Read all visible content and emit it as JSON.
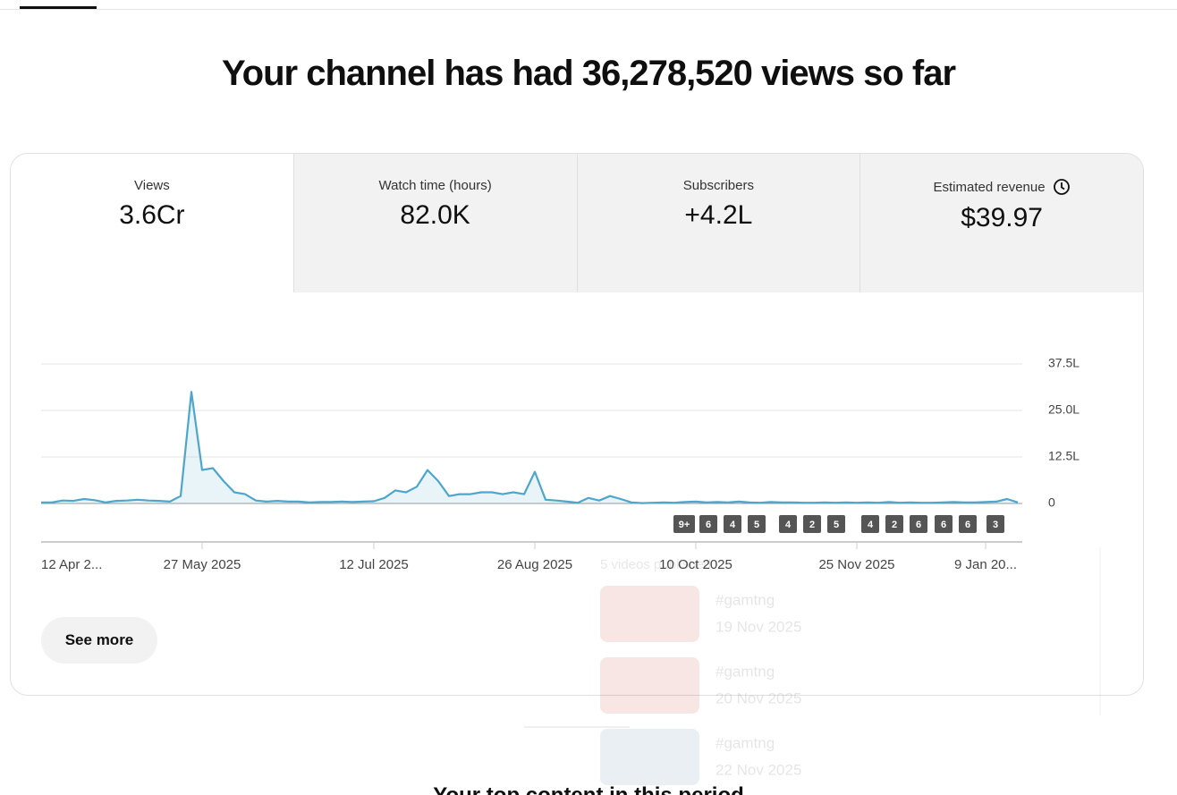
{
  "header": {
    "title": "Your channel has had 36,278,520 views so far"
  },
  "metrics": [
    {
      "label": "Views",
      "value": "3.6Cr"
    },
    {
      "label": "Watch time (hours)",
      "value": "82.0K"
    },
    {
      "label": "Subscribers",
      "value": "+4.2L"
    },
    {
      "label": "Estimated revenue",
      "value": "$39.97"
    }
  ],
  "chart_data": {
    "type": "line",
    "color": "#4ea6cc",
    "categories": [
      "12 Apr 2...",
      null,
      null,
      null,
      null,
      null,
      null,
      null,
      null,
      null,
      null,
      null,
      null,
      null,
      null,
      "27 May 2025",
      null,
      null,
      null,
      null,
      null,
      null,
      null,
      null,
      null,
      null,
      null,
      null,
      null,
      null,
      null,
      "12 Jul 2025",
      null,
      null,
      null,
      null,
      null,
      null,
      null,
      null,
      null,
      null,
      null,
      null,
      null,
      null,
      "26 Aug 2025",
      null,
      null,
      null,
      null,
      null,
      null,
      null,
      null,
      null,
      null,
      null,
      null,
      null,
      null,
      "10 Oct 2025",
      null,
      null,
      null,
      null,
      null,
      null,
      null,
      null,
      null,
      null,
      null,
      null,
      null,
      null,
      "25 Nov 2025",
      null,
      null,
      null,
      null,
      null,
      null,
      null,
      null,
      null,
      null,
      null,
      "9 Jan 20...",
      null,
      null,
      null
    ],
    "values": [
      0.3,
      0.3,
      0.8,
      0.7,
      1.2,
      0.9,
      0.3,
      0.7,
      0.8,
      1.0,
      0.8,
      0.7,
      0.5,
      2.0,
      30,
      9,
      9.5,
      6,
      3,
      2.5,
      0.8,
      0.5,
      0.7,
      0.5,
      0.5,
      0.3,
      0.4,
      0.4,
      0.5,
      0.4,
      0.5,
      0.6,
      1.5,
      3.5,
      3,
      4.5,
      9,
      6,
      2,
      2.5,
      2.5,
      3,
      3,
      2.5,
      3,
      2.5,
      8.5,
      1.0,
      0.8,
      0.5,
      0.2,
      1.5,
      0.8,
      2,
      1.2,
      0.3,
      0.1,
      0.2,
      0.3,
      0.2,
      0.4,
      0.5,
      0.3,
      0.4,
      0.3,
      0.5,
      0.3,
      0.2,
      0.4,
      0.3,
      0.3,
      0.2,
      0.2,
      0.3,
      0.2,
      0.3,
      0.2,
      0.3,
      0.2,
      0.4,
      0.2,
      0.3,
      0.2,
      0.2,
      0.3,
      0.4,
      0.3,
      0.3,
      0.4,
      0.5,
      1.2,
      0.3
    ],
    "ylim": [
      0,
      37.5
    ],
    "yticks": [
      0,
      {
        "value": 12.5,
        "label": "12.5L"
      },
      {
        "value": 25,
        "label": "25.0L"
      },
      {
        "value": 37.5,
        "label": "37.5L"
      }
    ],
    "grid": true
  },
  "video_markers": [
    "9+",
    "6",
    "4",
    "5",
    "4",
    "2",
    "5",
    "4",
    "2",
    "6",
    "6",
    "6",
    "3"
  ],
  "tooltip": {
    "heading": "5 videos published",
    "items": [
      {
        "title": "#gamtng",
        "date": "19 Nov 2025"
      },
      {
        "title": "#gamtng",
        "date": "20 Nov 2025"
      },
      {
        "title": "#gamtng",
        "date": "22 Nov 2025"
      }
    ]
  },
  "button": "See more",
  "footer": "Your top content in this period"
}
